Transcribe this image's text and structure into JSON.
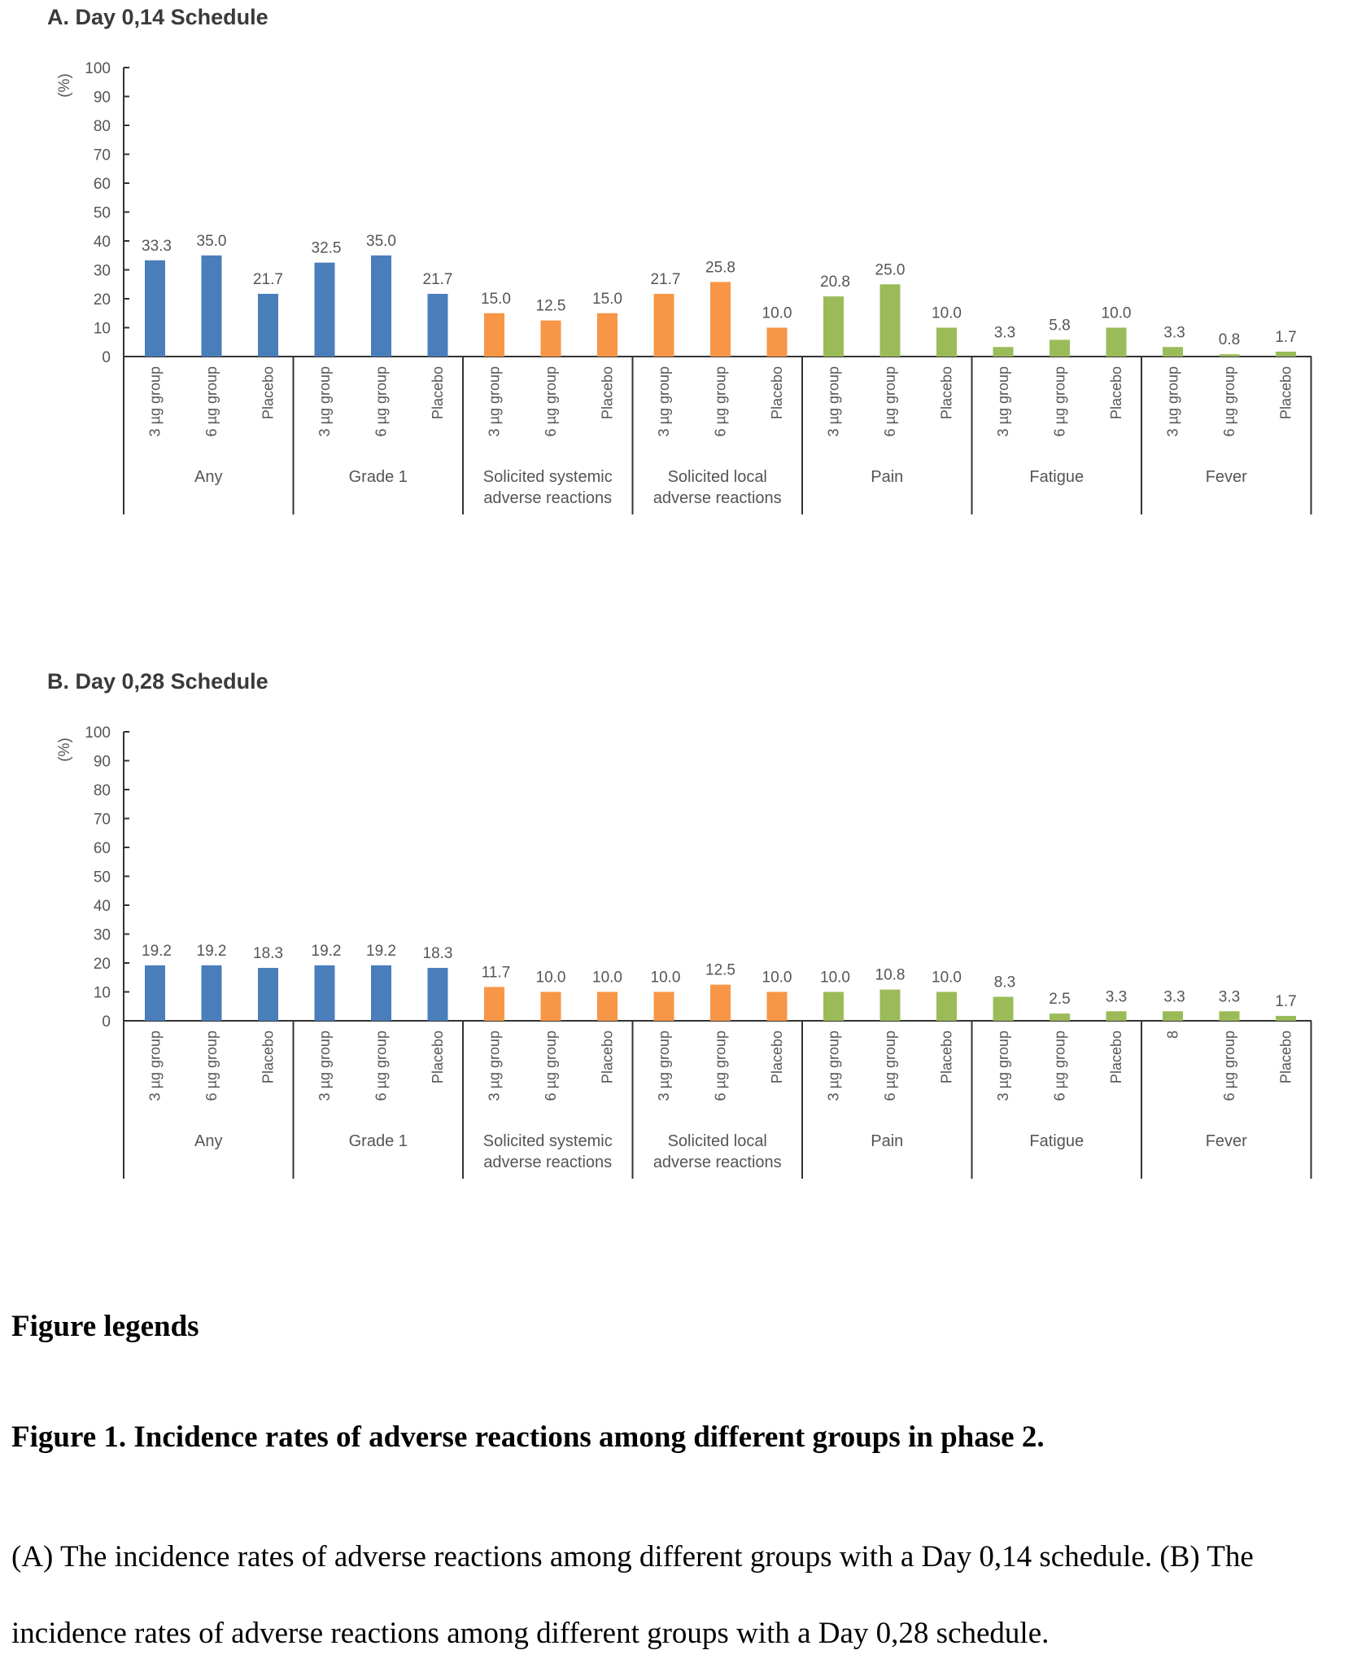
{
  "chart_data": [
    {
      "type": "bar",
      "title": "A. Day 0,14 Schedule",
      "ylabel": "(%)",
      "ylim": [
        0,
        100
      ],
      "yticks": [
        "0",
        "10",
        "20",
        "30",
        "40",
        "50",
        "60",
        "70",
        "80",
        "90",
        "100"
      ],
      "grid": false,
      "groups": [
        {
          "name": "Any",
          "color": "#4a7ebb"
        },
        {
          "name": "Grade 1",
          "color": "#4a7ebb"
        },
        {
          "name": "Solicited systemic\nadverse reactions",
          "color": "#f79646"
        },
        {
          "name": "Solicited local\nadverse reactions",
          "color": "#f79646"
        },
        {
          "name": "Pain",
          "color": "#9bbb59"
        },
        {
          "name": "Fatigue",
          "color": "#9bbb59"
        },
        {
          "name": "Fever",
          "color": "#9bbb59"
        }
      ],
      "category_labels": [
        [
          "3 µg group",
          "6 µg group",
          "Placebo"
        ],
        [
          "3 µg group",
          "6 µg group",
          "Placebo"
        ],
        [
          "3 µg group",
          "6 µg group",
          "Placebo"
        ],
        [
          "3 µg group",
          "6 µg group",
          "Placebo"
        ],
        [
          "3 µg group",
          "6 µg group",
          "Placebo"
        ],
        [
          "3 µg group",
          "6 µg group",
          "Placebo"
        ],
        [
          "3 µg group",
          "6 µg group",
          "Placebo"
        ]
      ],
      "values": [
        [
          33.3,
          35.0,
          21.7
        ],
        [
          32.5,
          35.0,
          21.7
        ],
        [
          15.0,
          12.5,
          15.0
        ],
        [
          21.7,
          25.8,
          10.0
        ],
        [
          20.8,
          25.0,
          10.0
        ],
        [
          3.3,
          5.8,
          10.0
        ],
        [
          3.3,
          0.8,
          1.7
        ]
      ],
      "value_labels": [
        [
          "33.3",
          "35.0",
          "21.7"
        ],
        [
          "32.5",
          "35.0",
          "21.7"
        ],
        [
          "15.0",
          "12.5",
          "15.0"
        ],
        [
          "21.7",
          "25.8",
          "10.0"
        ],
        [
          "20.8",
          "25.0",
          "10.0"
        ],
        [
          "3.3",
          "5.8",
          "10.0"
        ],
        [
          "3.3",
          "0.8",
          "1.7"
        ]
      ]
    },
    {
      "type": "bar",
      "title": "B. Day 0,28 Schedule",
      "ylabel": "(%)",
      "ylim": [
        0,
        100
      ],
      "yticks": [
        "0",
        "10",
        "20",
        "30",
        "40",
        "50",
        "60",
        "70",
        "80",
        "90",
        "100"
      ],
      "grid": false,
      "groups": [
        {
          "name": "Any",
          "color": "#4a7ebb"
        },
        {
          "name": "Grade 1",
          "color": "#4a7ebb"
        },
        {
          "name": "Solicited systemic\nadverse reactions",
          "color": "#f79646"
        },
        {
          "name": "Solicited local\nadverse reactions",
          "color": "#f79646"
        },
        {
          "name": "Pain",
          "color": "#9bbb59"
        },
        {
          "name": "Fatigue",
          "color": "#9bbb59"
        },
        {
          "name": "Fever",
          "color": "#9bbb59"
        }
      ],
      "category_labels": [
        [
          "3 µg group",
          "6 µg group",
          "Placebo"
        ],
        [
          "3 µg group",
          "6 µg group",
          "Placebo"
        ],
        [
          "3 µg group",
          "6 µg group",
          "Placebo"
        ],
        [
          "3 µg group",
          "6 µg group",
          "Placebo"
        ],
        [
          "3 µg group",
          "6 µg group",
          "Placebo"
        ],
        [
          "3 µg group",
          "6 µg group",
          "Placebo"
        ],
        [
          "8",
          "6 µg group",
          "Placebo"
        ]
      ],
      "values": [
        [
          19.2,
          19.2,
          18.3
        ],
        [
          19.2,
          19.2,
          18.3
        ],
        [
          11.7,
          10.0,
          10.0
        ],
        [
          10.0,
          12.5,
          10.0
        ],
        [
          10.0,
          10.8,
          10.0
        ],
        [
          8.3,
          2.5,
          3.3
        ],
        [
          3.3,
          3.3,
          1.7
        ]
      ],
      "value_labels": [
        [
          "19.2",
          "19.2",
          "18.3"
        ],
        [
          "19.2",
          "19.2",
          "18.3"
        ],
        [
          "11.7",
          "10.0",
          "10.0"
        ],
        [
          "10.0",
          "12.5",
          "10.0"
        ],
        [
          "10.0",
          "10.8",
          "10.0"
        ],
        [
          "8.3",
          "2.5",
          "3.3"
        ],
        [
          "3.3",
          "3.3",
          "1.7"
        ]
      ]
    }
  ],
  "legend_heading": "Figure legends",
  "figure_caption": "Figure 1. Incidence rates of adverse reactions among different groups in phase 2.",
  "figure_description": "(A) The incidence rates of adverse reactions among different groups with a Day 0,14 schedule. (B) The incidence rates of adverse reactions among different groups with a Day 0,28 schedule."
}
